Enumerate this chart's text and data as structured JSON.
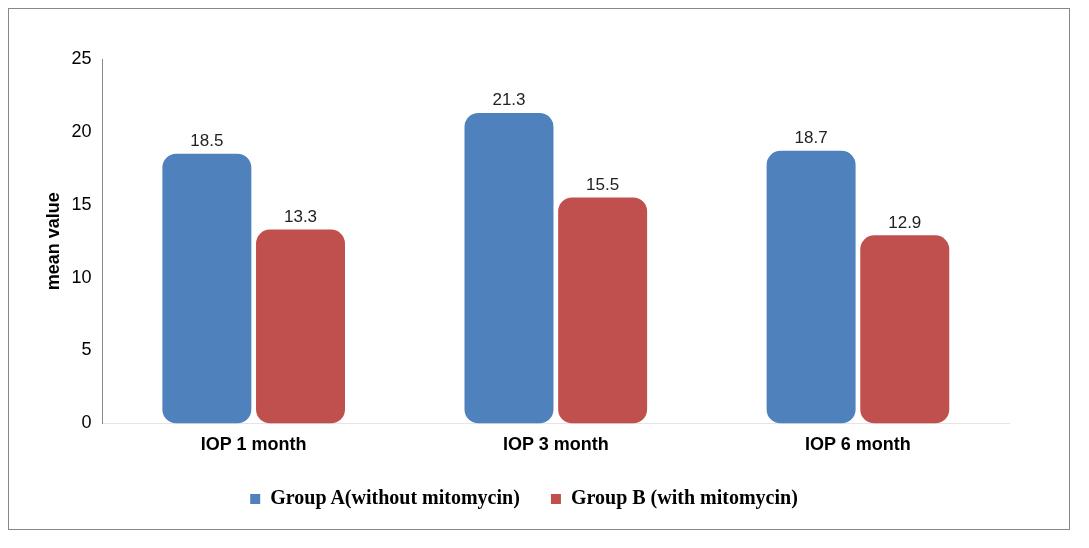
{
  "chart_data": {
    "type": "bar",
    "ylabel": "mean value",
    "categories": [
      "IOP 1 month",
      "IOP 3 month",
      "IOP 6 month"
    ],
    "series": [
      {
        "name": "Group A(without mitomycin)",
        "color": "#4f81bd",
        "values": [
          18.5,
          21.3,
          18.7
        ]
      },
      {
        "name": "Group B (with mitomycin)",
        "color": "#c0504d",
        "values": [
          13.3,
          15.5,
          12.9
        ]
      }
    ],
    "ylim": [
      0,
      25
    ],
    "yticks": [
      0,
      5,
      10,
      15,
      20,
      25
    ],
    "grid": false,
    "legend": "bottom",
    "data_labels": true
  }
}
